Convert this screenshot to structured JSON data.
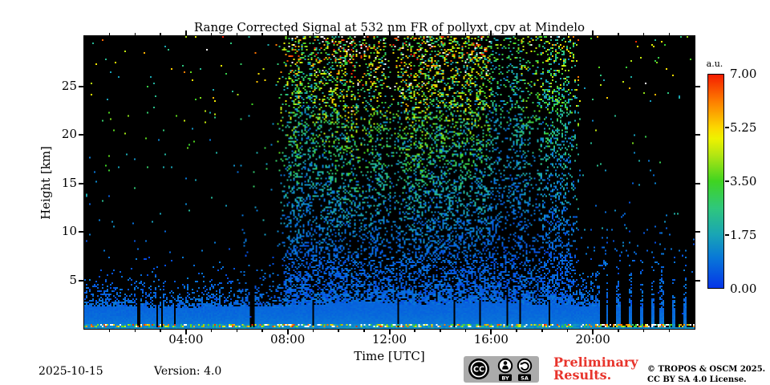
{
  "chart_data": {
    "type": "heatmap",
    "title": "Range Corrected Signal at 532 nm FR of pollyxt_cpv at Mindelo",
    "xlabel": "Time [UTC]",
    "ylabel": "Height [km]",
    "x_range_hours": [
      0,
      24
    ],
    "y_range_km": [
      0,
      30.2
    ],
    "value_range_au": [
      0,
      7
    ],
    "grid": false,
    "x_major_ticks": [
      {
        "hour": 4,
        "label": "04:00"
      },
      {
        "hour": 8,
        "label": "08:00"
      },
      {
        "hour": 12,
        "label": "12:00"
      },
      {
        "hour": 16,
        "label": "16:00"
      },
      {
        "hour": 20,
        "label": "20:00"
      }
    ],
    "x_minor_tick_hours": [
      1,
      2,
      3,
      5,
      6,
      7,
      9,
      10,
      11,
      13,
      14,
      15,
      17,
      18,
      19,
      21,
      22,
      23
    ],
    "y_major_ticks_km": [
      5,
      10,
      15,
      20,
      25
    ],
    "colorbar": {
      "label": "a.u.",
      "position": "right",
      "tick_labels": [
        "7.00",
        "5.25",
        "3.50",
        "1.75",
        "0.00"
      ],
      "tick_values": [
        7,
        5.25,
        3.5,
        1.75,
        0
      ],
      "colormap": [
        [
          0.0,
          "#0535e8"
        ],
        [
          0.14,
          "#0877d8"
        ],
        [
          0.25,
          "#19a5b5"
        ],
        [
          0.375,
          "#2fc77c"
        ],
        [
          0.5,
          "#3fd421"
        ],
        [
          0.625,
          "#b5e612"
        ],
        [
          0.7,
          "#eef200"
        ],
        [
          0.75,
          "#fcd800"
        ],
        [
          0.875,
          "#fd7d00"
        ],
        [
          1.0,
          "#f51d00"
        ]
      ]
    },
    "features": {
      "background": "black, no-signal regions",
      "boundary_layer_top_km": 2.3,
      "boundary_layer_value_au": 0.9,
      "surface_echo_line_km": 0.3,
      "daytime_noise_hours": [
        7.5,
        19.4
      ],
      "night_noise_density": 0.008,
      "day_noise_density": 0.3,
      "blocked_columns_hours": [
        [
          2.1,
          2.18,
          4
        ],
        [
          2.82,
          2.9,
          5
        ],
        [
          3.05,
          3.12,
          4
        ],
        [
          3.52,
          3.6,
          3
        ],
        [
          6.52,
          6.72,
          13
        ],
        [
          9.0,
          9.06,
          3
        ],
        [
          12.33,
          12.4,
          3
        ],
        [
          14.5,
          14.56,
          3
        ],
        [
          15.55,
          15.62,
          3
        ],
        [
          16.6,
          16.67,
          4
        ],
        [
          17.1,
          17.17,
          4
        ],
        [
          18.25,
          18.32,
          3
        ]
      ],
      "evening_gap_bars_hours": [
        [
          20.25,
          20.5,
          6.5
        ],
        [
          20.62,
          20.92,
          7.0
        ],
        [
          21.1,
          21.42,
          7.5
        ],
        [
          21.55,
          21.85,
          7.0
        ],
        [
          22.0,
          22.3,
          7.5
        ],
        [
          22.42,
          22.62,
          6.5
        ],
        [
          22.78,
          23.12,
          7.5
        ],
        [
          23.25,
          23.55,
          7.0
        ],
        [
          23.68,
          23.98,
          7.5
        ]
      ],
      "column_value_scale": [
        [
          8.5,
          8.95,
          0.7
        ],
        [
          10.3,
          11.0,
          1.15
        ],
        [
          12.6,
          13.5,
          1.1
        ],
        [
          16.0,
          17.2,
          0.62
        ],
        [
          17.2,
          19.3,
          0.8
        ]
      ],
      "seed": 1337
    }
  },
  "footer": {
    "date": "2025-10-15",
    "version_label": "Version: 4.0",
    "preliminary_line1": "Preliminary",
    "preliminary_line2": "Results.",
    "copyright_line1": "© TROPOS & OSCM 2025.",
    "copyright_line2": "CC BY SA 4.0 License.",
    "license_badge": {
      "cc": "CC",
      "by": "BY",
      "sa": "SA"
    }
  },
  "colors": {
    "preliminary_red": "#e8342c",
    "badge_bg": "#ababab",
    "text": "#000000",
    "plot_background": "#000000"
  }
}
